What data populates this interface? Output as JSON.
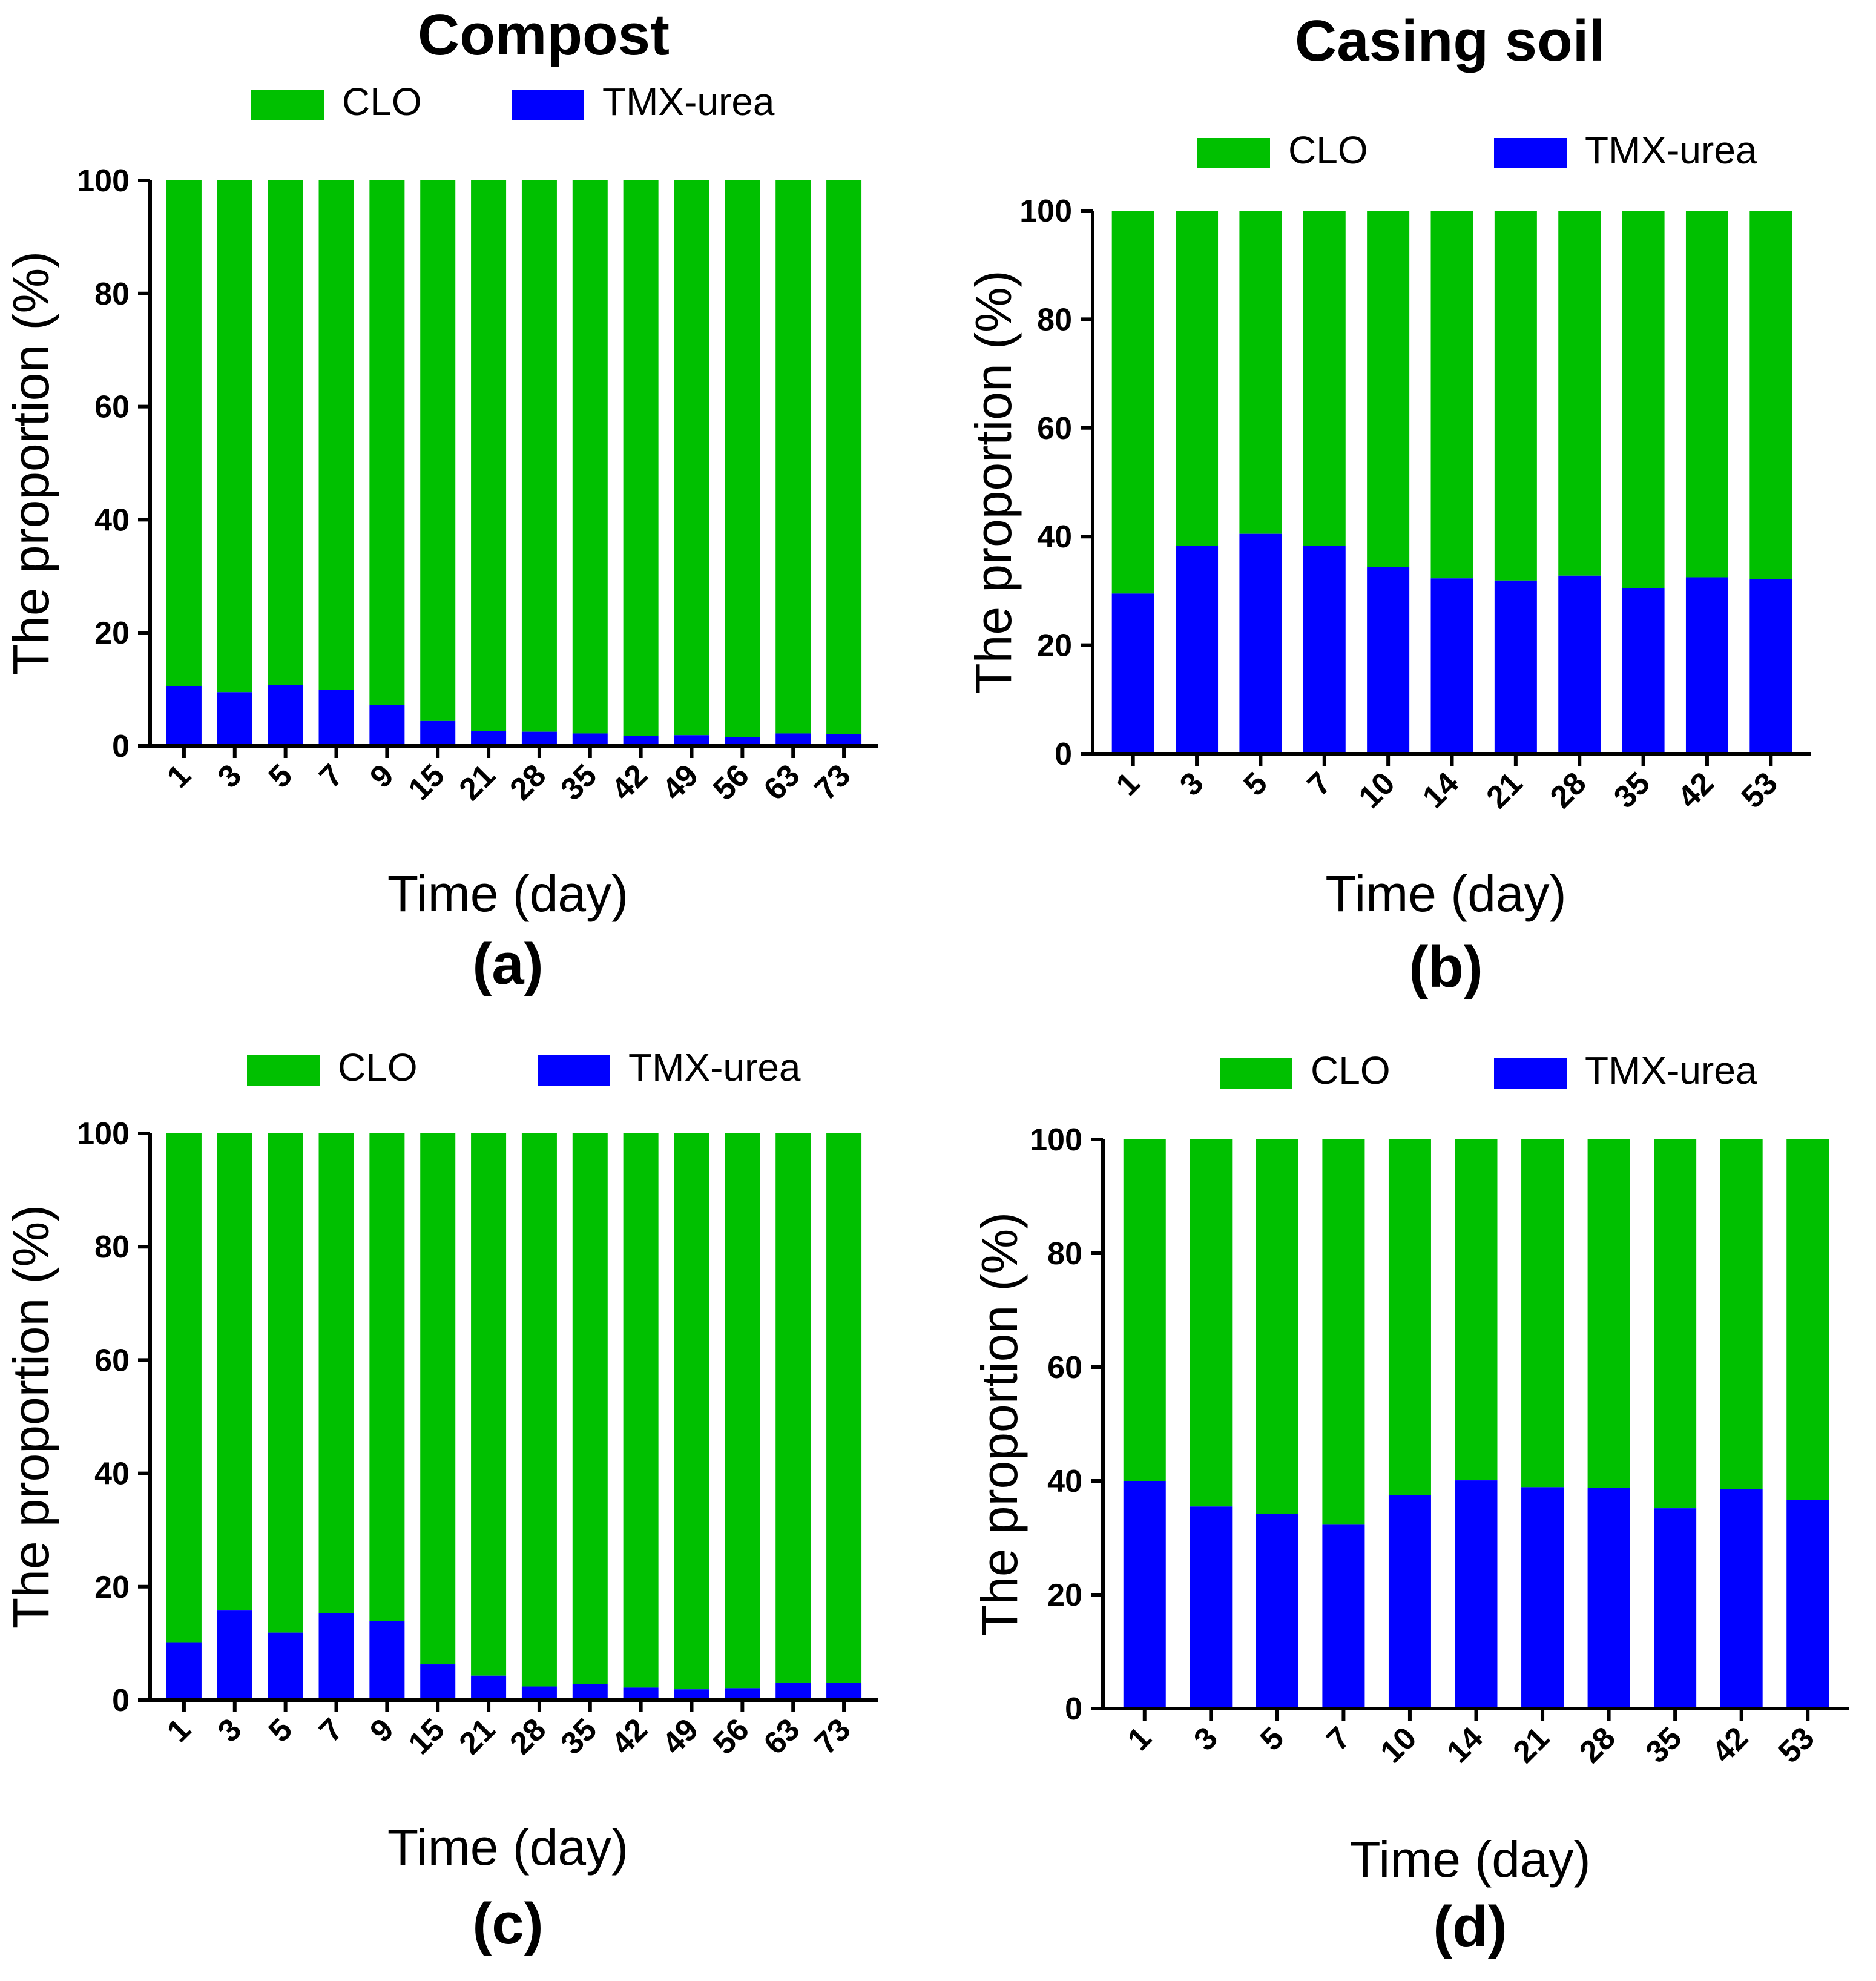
{
  "column_titles": [
    "Compost",
    "Casing soil"
  ],
  "colors": {
    "clo": "#00c000",
    "tmx": "#0000ff",
    "axis": "#000000"
  },
  "chart_data": [
    {
      "type": "bar",
      "stacked": true,
      "panel_label": "(a)",
      "xlabel": "Time (day)",
      "ylabel": "The proportion (%)",
      "ylim": [
        0,
        100
      ],
      "yticks": [
        "0",
        "20",
        "40",
        "60",
        "80",
        "100"
      ],
      "categories": [
        "1",
        "3",
        "5",
        "7",
        "9",
        "15",
        "21",
        "28",
        "35",
        "42",
        "49",
        "56",
        "63",
        "73"
      ],
      "series": [
        {
          "name": "TMX-urea",
          "values": [
            10.6,
            9.5,
            10.8,
            9.9,
            7.2,
            4.4,
            2.6,
            2.5,
            2.2,
            1.8,
            1.9,
            1.6,
            2.2,
            2.1
          ]
        },
        {
          "name": "CLO",
          "values": [
            89.4,
            90.5,
            89.2,
            90.1,
            92.8,
            95.6,
            97.4,
            97.5,
            97.8,
            98.2,
            98.1,
            98.4,
            97.8,
            97.9
          ]
        }
      ],
      "legend": [
        "CLO",
        "TMX-urea"
      ]
    },
    {
      "type": "bar",
      "stacked": true,
      "panel_label": "(b)",
      "xlabel": "Time (day)",
      "ylabel": "The proportion (%)",
      "ylim": [
        0,
        100
      ],
      "yticks": [
        "0",
        "20",
        "40",
        "60",
        "80",
        "100"
      ],
      "categories": [
        "1",
        "3",
        "5",
        "7",
        "10",
        "14",
        "21",
        "28",
        "35",
        "42",
        "53"
      ],
      "series": [
        {
          "name": "TMX-urea",
          "values": [
            29.5,
            38.3,
            40.5,
            38.3,
            34.4,
            32.3,
            31.9,
            32.8,
            30.5,
            32.5,
            32.2
          ]
        },
        {
          "name": "CLO",
          "values": [
            70.5,
            61.7,
            59.5,
            61.7,
            65.6,
            67.7,
            68.1,
            67.2,
            69.5,
            67.5,
            67.8
          ]
        }
      ],
      "legend": [
        "CLO",
        "TMX-urea"
      ]
    },
    {
      "type": "bar",
      "stacked": true,
      "panel_label": "(c)",
      "xlabel": "Time (day)",
      "ylabel": "The proportion (%)",
      "ylim": [
        0,
        100
      ],
      "yticks": [
        "0",
        "20",
        "40",
        "60",
        "80",
        "100"
      ],
      "categories": [
        "1",
        "3",
        "5",
        "7",
        "9",
        "15",
        "21",
        "28",
        "35",
        "42",
        "49",
        "56",
        "63",
        "73"
      ],
      "series": [
        {
          "name": "TMX-urea",
          "values": [
            10.2,
            15.8,
            11.9,
            15.3,
            13.9,
            6.3,
            4.3,
            2.4,
            2.8,
            2.2,
            1.9,
            2.1,
            3.1,
            3.0
          ]
        },
        {
          "name": "CLO",
          "values": [
            89.8,
            84.2,
            88.1,
            84.7,
            86.1,
            93.7,
            95.7,
            97.6,
            97.2,
            97.8,
            98.1,
            97.9,
            96.9,
            97.0
          ]
        }
      ],
      "legend": [
        "CLO",
        "TMX-urea"
      ]
    },
    {
      "type": "bar",
      "stacked": true,
      "panel_label": "(d)",
      "xlabel": "Time (day)",
      "ylabel": "The proportion (%)",
      "ylim": [
        0,
        100
      ],
      "yticks": [
        "0",
        "20",
        "40",
        "60",
        "80",
        "100"
      ],
      "categories": [
        "1",
        "3",
        "5",
        "7",
        "10",
        "14",
        "21",
        "28",
        "35",
        "42",
        "53"
      ],
      "series": [
        {
          "name": "TMX-urea",
          "values": [
            40.0,
            35.5,
            34.2,
            32.3,
            37.5,
            40.1,
            38.9,
            38.8,
            35.2,
            38.6,
            36.6
          ]
        },
        {
          "name": "CLO",
          "values": [
            60.0,
            64.5,
            65.8,
            67.7,
            62.5,
            59.9,
            61.1,
            61.2,
            64.8,
            61.4,
            63.4
          ]
        }
      ],
      "legend": [
        "CLO",
        "TMX-urea"
      ]
    }
  ]
}
